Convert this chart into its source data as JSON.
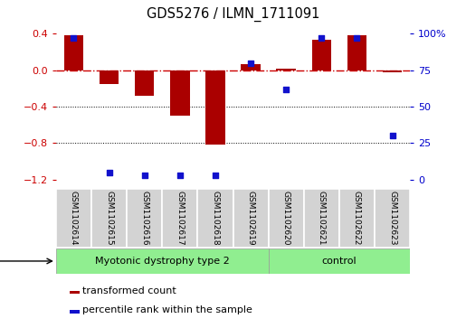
{
  "title": "GDS5276 / ILMN_1711091",
  "samples": [
    "GSM1102614",
    "GSM1102615",
    "GSM1102616",
    "GSM1102617",
    "GSM1102618",
    "GSM1102619",
    "GSM1102620",
    "GSM1102621",
    "GSM1102622",
    "GSM1102623"
  ],
  "red_bars": [
    0.38,
    -0.15,
    -0.28,
    -0.5,
    -0.82,
    0.07,
    0.02,
    0.33,
    0.38,
    -0.02
  ],
  "blue_dots": [
    97,
    5,
    3,
    3,
    3,
    80,
    62,
    97,
    97,
    30
  ],
  "ylim_left": [
    -1.3,
    0.5
  ],
  "ylim_right": [
    -1.3,
    0.5
  ],
  "left_yticks": [
    0.4,
    0.0,
    -0.4,
    -0.8,
    -1.2
  ],
  "right_yticks_vals": [
    -1.2,
    -0.8,
    -0.4,
    0.0,
    0.4
  ],
  "right_yticks_labels": [
    "0",
    "25",
    "50",
    "75",
    "100%"
  ],
  "bar_color": "#aa0000",
  "dot_color": "#1111cc",
  "hline_color": "#cc0000",
  "disease_groups": [
    {
      "label": "Myotonic dystrophy type 2",
      "start": 0,
      "end": 6,
      "color": "#90ee90"
    },
    {
      "label": "control",
      "start": 6,
      "end": 10,
      "color": "#90ee90"
    }
  ],
  "legend_items": [
    {
      "label": "transformed count",
      "color": "#aa0000"
    },
    {
      "label": "percentile rank within the sample",
      "color": "#1111cc"
    }
  ]
}
